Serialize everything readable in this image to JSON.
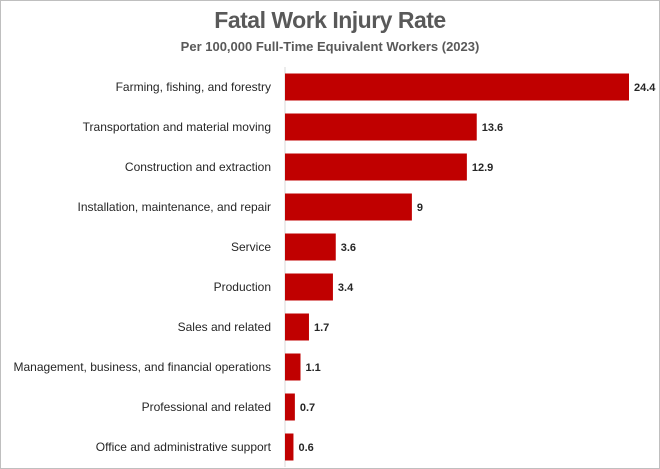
{
  "chart_data": {
    "type": "bar",
    "orientation": "horizontal",
    "title": "Fatal Work Injury Rate",
    "subtitle": "Per 100,000 Full-Time Equivalent Workers (2023)",
    "categories": [
      "Farming, fishing, and forestry",
      "Transportation and material moving",
      "Construction and extraction",
      "Installation, maintenance, and repair",
      "Service",
      "Production",
      "Sales and related",
      "Management, business, and financial operations",
      "Professional and related",
      "Office and administrative support"
    ],
    "values": [
      24.4,
      13.6,
      12.9,
      9,
      3.6,
      3.4,
      1.7,
      1.1,
      0.7,
      0.6
    ],
    "value_labels": [
      "24.4",
      "13.6",
      "12.9",
      "9",
      "3.6",
      "3.4",
      "1.7",
      "1.1",
      "0.7",
      "0.6"
    ],
    "xlim": [
      0,
      24.4
    ],
    "grid": false,
    "legend": "none",
    "bar_color": "#c00000"
  }
}
